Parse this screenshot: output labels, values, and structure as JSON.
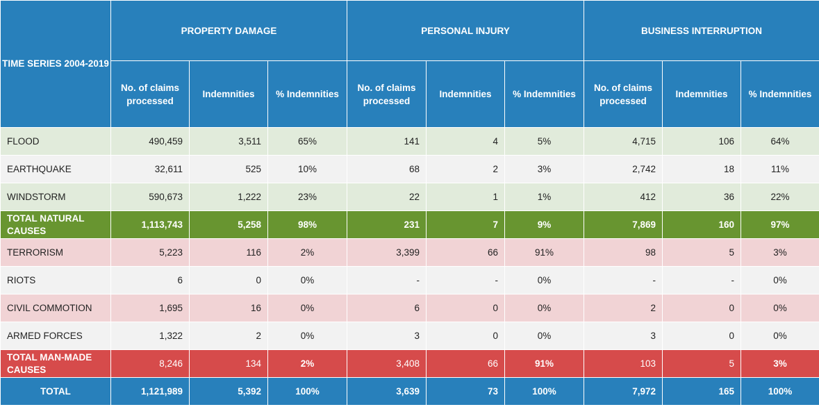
{
  "header": {
    "corner": "TIME SERIES 2004-2019",
    "groups": [
      "PROPERTY DAMAGE",
      "PERSONAL INJURY",
      "BUSINESS INTERRUPTION"
    ],
    "subcolumns": [
      "No. of claims processed",
      "Indemnities",
      "% Indemnities"
    ]
  },
  "rows": [
    {
      "label": "FLOOD",
      "style": "green",
      "values": [
        "490,459",
        "3,511",
        "65%",
        "141",
        "4",
        "5%",
        "4,715",
        "106",
        "64%"
      ]
    },
    {
      "label": "EARTHQUAKE",
      "style": "white",
      "values": [
        "32,611",
        "525",
        "10%",
        "68",
        "2",
        "3%",
        "2,742",
        "18",
        "11%"
      ]
    },
    {
      "label": "WINDSTORM",
      "style": "green",
      "values": [
        "590,673",
        "1,222",
        "23%",
        "22",
        "1",
        "1%",
        "412",
        "36",
        "22%"
      ]
    },
    {
      "label": "TOTAL NATURAL CAUSES",
      "style": "total-natural",
      "values": [
        "1,113,743",
        "5,258",
        "98%",
        "231",
        "7",
        "9%",
        "7,869",
        "160",
        "97%"
      ]
    },
    {
      "label": "TERRORISM",
      "style": "pink",
      "values": [
        "5,223",
        "116",
        "2%",
        "3,399",
        "66",
        "91%",
        "98",
        "5",
        "3%"
      ]
    },
    {
      "label": "RIOTS",
      "style": "white",
      "values": [
        "6",
        "0",
        "0%",
        "-",
        "-",
        "0%",
        "-",
        "-",
        "0%"
      ]
    },
    {
      "label": "CIVIL COMMOTION",
      "style": "pink",
      "values": [
        "1,695",
        "16",
        "0%",
        "6",
        "0",
        "0%",
        "2",
        "0",
        "0%"
      ]
    },
    {
      "label": "ARMED FORCES",
      "style": "white",
      "values": [
        "1,322",
        "2",
        "0%",
        "3",
        "0",
        "0%",
        "3",
        "0",
        "0%"
      ]
    },
    {
      "label": "TOTAL MAN-MADE CAUSES",
      "style": "total-man",
      "values": [
        "8,246",
        "134",
        "2%",
        "3,408",
        "66",
        "91%",
        "103",
        "5",
        "3%"
      ]
    },
    {
      "label": "TOTAL",
      "style": "grand",
      "values": [
        "1,121,989",
        "5,392",
        "100%",
        "3,639",
        "73",
        "100%",
        "7,972",
        "165",
        "100%"
      ]
    }
  ],
  "colors": {
    "header_blue": "#2880bb",
    "row_green": "#e1ebdb",
    "row_white": "#f2f2f2",
    "row_pink": "#f1d3d5",
    "total_natural": "#689530",
    "total_man_made": "#d64b4b"
  }
}
